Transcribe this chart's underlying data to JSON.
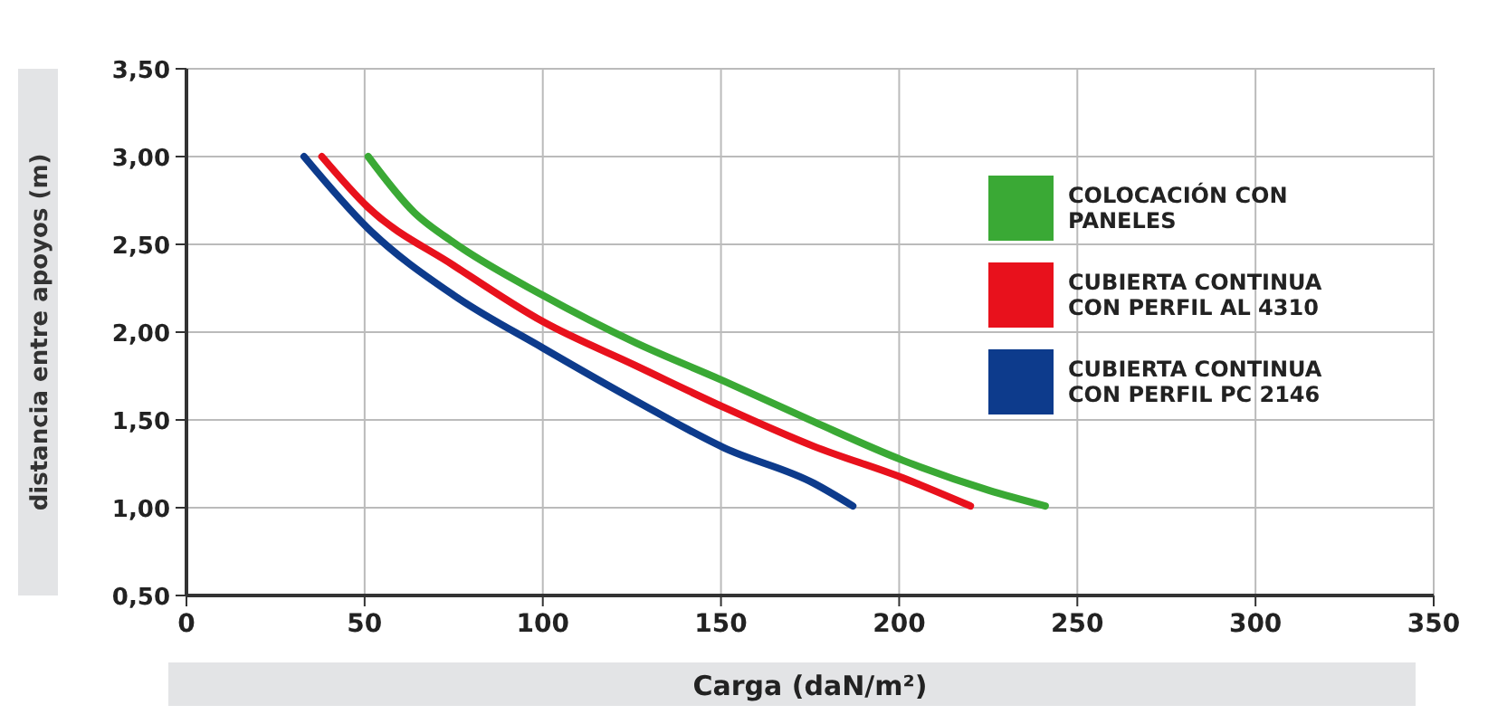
{
  "chart_data": {
    "type": "line",
    "xlabel": "Carga (daN/m²)",
    "ylabel": "distancia entre apoyos (m)",
    "xlim": [
      0,
      350
    ],
    "xticks": [
      0,
      50,
      100,
      150,
      200,
      250,
      300,
      350
    ],
    "ylim": [
      0.5,
      3.5
    ],
    "yticks": [
      {
        "value": 0.5,
        "label": "0,50"
      },
      {
        "value": 1,
        "label": "1,00"
      },
      {
        "value": 1.5,
        "label": "1,50"
      },
      {
        "value": 2,
        "label": "2,00"
      },
      {
        "value": 2.5,
        "label": "2,50"
      },
      {
        "value": 3,
        "label": "3,00"
      },
      {
        "value": 3.5,
        "label": "3,50"
      }
    ],
    "grid": true,
    "legend": "top right",
    "line_style": "solid",
    "marker": "none",
    "series": [
      {
        "name": "COLOCACIÓN CON PANELES",
        "color": "#3aa935",
        "x": [
          51,
          64,
          75,
          100,
          126,
          151,
          176,
          201,
          225,
          241
        ],
        "values": [
          3.0,
          2.68,
          2.51,
          2.21,
          1.94,
          1.72,
          1.49,
          1.27,
          1.1,
          1.01
        ]
      },
      {
        "name": "CUBIERTA CONTINUA CON PERFIL AL 4310",
        "color": "#e8111c",
        "x": [
          38,
          51,
          75,
          100,
          126,
          151,
          176,
          201,
          220
        ],
        "values": [
          3.0,
          2.71,
          2.38,
          2.06,
          1.81,
          1.57,
          1.35,
          1.17,
          1.01
        ]
      },
      {
        "name": "CUBIERTA CONTINUA CON PERFIL PC 2146",
        "color": "#0d3b8c",
        "x": [
          33,
          51,
          75,
          100,
          126,
          151,
          176,
          187
        ],
        "values": [
          3.0,
          2.59,
          2.21,
          1.91,
          1.61,
          1.34,
          1.14,
          1.01
        ]
      }
    ]
  }
}
